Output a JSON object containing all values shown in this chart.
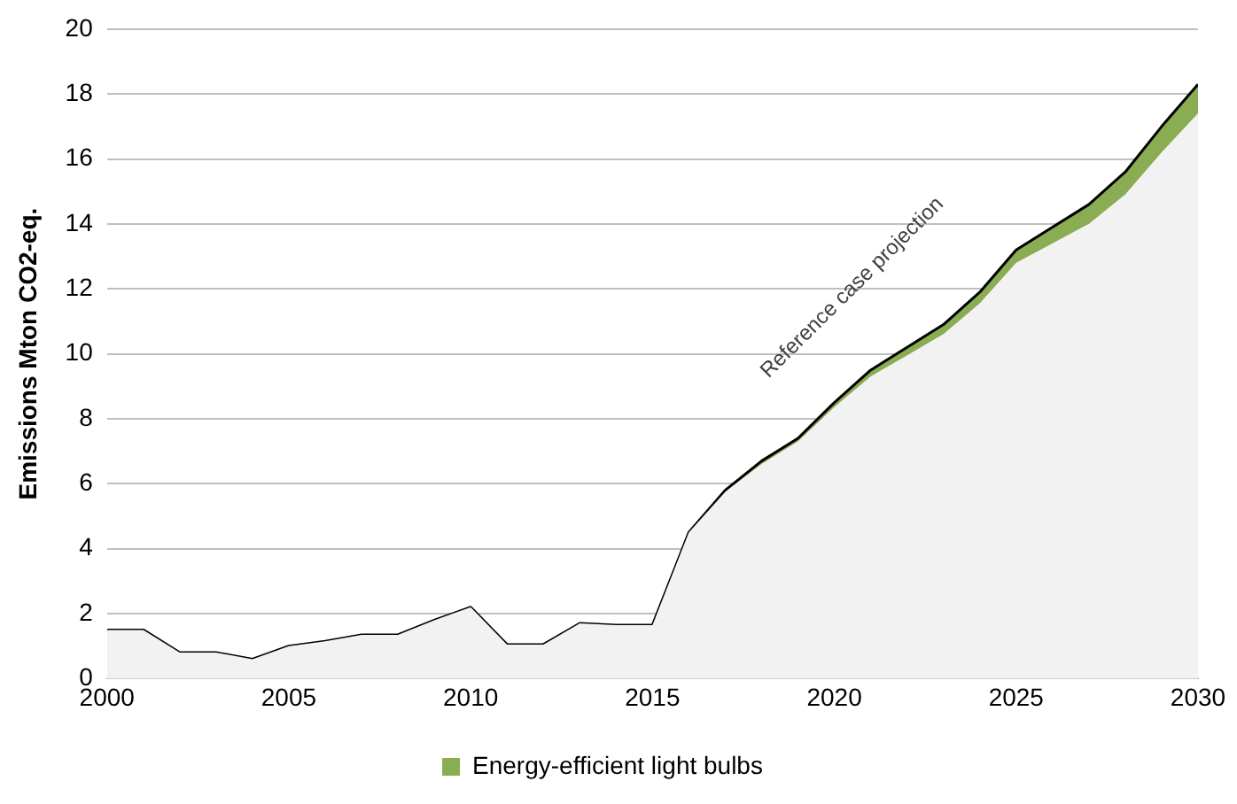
{
  "chart_data": {
    "type": "area",
    "stacked": true,
    "ylabel": "Emissions Mton CO2-eq.",
    "x": [
      2000,
      2001,
      2002,
      2003,
      2004,
      2005,
      2006,
      2007,
      2008,
      2009,
      2010,
      2011,
      2012,
      2013,
      2014,
      2015,
      2016,
      2017,
      2018,
      2019,
      2020,
      2021,
      2022,
      2023,
      2024,
      2025,
      2026,
      2027,
      2028,
      2029,
      2030
    ],
    "series": [
      {
        "color": "#f2f2f2",
        "values": [
          1.5,
          1.5,
          0.8,
          0.8,
          0.6,
          1.0,
          1.15,
          1.35,
          1.35,
          1.8,
          2.2,
          1.05,
          1.05,
          1.7,
          1.65,
          1.65,
          4.5,
          5.75,
          6.6,
          7.3,
          8.35,
          9.3,
          9.95,
          10.6,
          11.55,
          12.8,
          13.4,
          14.0,
          14.9,
          16.2,
          17.4
        ]
      },
      {
        "name": "Energy-efficient light bulbs",
        "color": "#8aad53",
        "values": [
          0,
          0,
          0,
          0,
          0,
          0,
          0,
          0,
          0,
          0,
          0,
          0,
          0,
          0,
          0,
          0,
          0,
          0.05,
          0.1,
          0.1,
          0.15,
          0.2,
          0.25,
          0.3,
          0.35,
          0.4,
          0.5,
          0.6,
          0.7,
          0.8,
          0.9
        ]
      }
    ],
    "xlim": [
      2000,
      2030
    ],
    "xticks": [
      2000,
      2005,
      2010,
      2015,
      2020,
      2025,
      2030
    ],
    "ylim": [
      0,
      20
    ],
    "yticks": [
      0,
      2,
      4,
      6,
      8,
      10,
      12,
      14,
      16,
      18,
      20
    ],
    "grid": "y",
    "legend": "bottom",
    "annotations": [
      "Reference case projection"
    ]
  }
}
